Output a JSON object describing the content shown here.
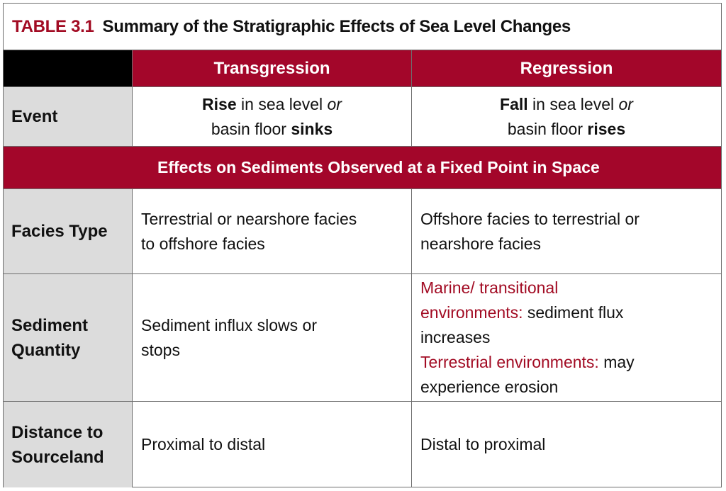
{
  "title": {
    "number": "TABLE 3.1",
    "text": "Summary of the Stratigraphic Effects of Sea Level Changes"
  },
  "columns": {
    "transgression": "Transgression",
    "regression": "Regression"
  },
  "event": {
    "label": "Event",
    "transgression": {
      "l1_bold": "Rise",
      "l1_text": " in sea level ",
      "l1_italic": "or",
      "l2_text": "basin floor ",
      "l2_bold": "sinks"
    },
    "regression": {
      "l1_bold": "Fall",
      "l1_text": " in sea level ",
      "l1_italic": "or",
      "l2_text": "basin floor ",
      "l2_bold": "rises"
    }
  },
  "effects_header": "Effects on Sediments Observed at a Fixed Point in Space",
  "facies": {
    "label": "Facies Type",
    "transgression": [
      "Terrestrial or nearshore facies",
      "to offshore facies"
    ],
    "regression": [
      "Offshore facies to terrestrial or",
      "nearshore facies"
    ]
  },
  "sediment": {
    "label_line1": "Sediment",
    "label_line2": "Quantity",
    "transgression": [
      "Sediment influx slows or",
      "stops"
    ],
    "regression": {
      "marine_line1": "Marine/ transitional",
      "marine_line2_red": "environments:",
      "marine_line2_text": " sediment flux",
      "marine_line3": "increases",
      "terrestrial_red": "Terrestrial environments:",
      "terrestrial_text": " may",
      "terrestrial_line2": "experience erosion"
    }
  },
  "distance": {
    "label_line1": "Distance to",
    "label_line2": "Sourceland",
    "transgression": "Proximal to distal",
    "regression": "Distal to proximal"
  },
  "colors": {
    "accent": "#a3062a",
    "label_bg": "#dcdcdc",
    "header_corner": "#000000"
  }
}
